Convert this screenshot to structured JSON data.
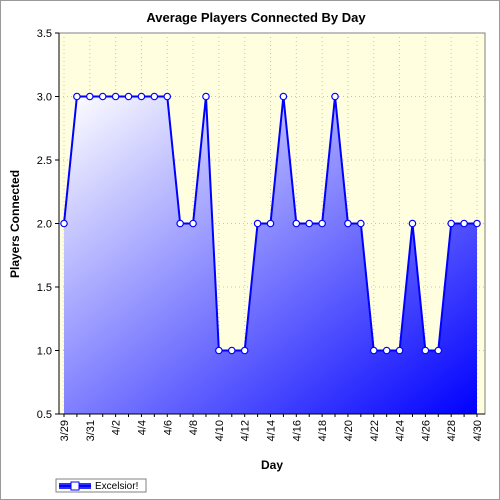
{
  "chart_data": {
    "type": "area",
    "title": "Average Players Connected By Day",
    "xlabel": "Day",
    "ylabel": "Players Connected",
    "ylim": [
      0.5,
      3.5
    ],
    "yticks": [
      "0.5",
      "1.0",
      "1.5",
      "2.0",
      "2.5",
      "3.0",
      "3.5"
    ],
    "grid": true,
    "legend": "bottom-left",
    "x": [
      "3/29",
      "3/30",
      "3/31",
      "4/1",
      "4/2",
      "4/3",
      "4/4",
      "4/5",
      "4/6",
      "4/7",
      "4/8",
      "4/9",
      "4/10",
      "4/11",
      "4/12",
      "4/13",
      "4/14",
      "4/15",
      "4/16",
      "4/17",
      "4/18",
      "4/19",
      "4/20",
      "4/21",
      "4/22",
      "4/23",
      "4/24",
      "4/25",
      "4/26",
      "4/27",
      "4/28",
      "4/29",
      "4/30"
    ],
    "xtick_labels": [
      "3/29",
      "3/31",
      "4/2",
      "4/4",
      "4/6",
      "4/8",
      "4/10",
      "4/12",
      "4/14",
      "4/16",
      "4/18",
      "4/20",
      "4/22",
      "4/24",
      "4/26",
      "4/28",
      "4/30"
    ],
    "series": [
      {
        "name": "Excelsior!",
        "values": [
          2,
          3,
          3,
          3,
          3,
          3,
          3,
          3,
          3,
          2,
          2,
          3,
          1,
          1,
          1,
          2,
          2,
          3,
          2,
          2,
          2,
          3,
          2,
          2,
          1,
          1,
          1,
          2,
          1,
          1,
          2,
          2,
          2
        ]
      }
    ],
    "colors": {
      "plot_bg": "#ffffe0",
      "line": "#0000ff",
      "fill_light": "#ffffff",
      "fill_dark": "#0000ff",
      "grid": "#c8c8a0"
    }
  }
}
